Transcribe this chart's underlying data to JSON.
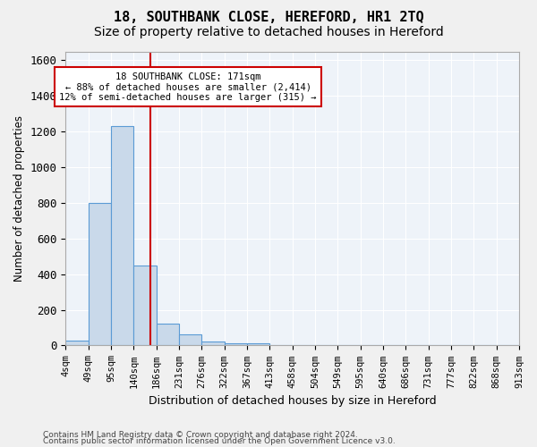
{
  "title": "18, SOUTHBANK CLOSE, HEREFORD, HR1 2TQ",
  "subtitle": "Size of property relative to detached houses in Hereford",
  "xlabel": "Distribution of detached houses by size in Hereford",
  "ylabel": "Number of detached properties",
  "bar_heights": [
    25,
    800,
    1230,
    450,
    125,
    60,
    20,
    12,
    10,
    0,
    0,
    0,
    0,
    0,
    0,
    0,
    0,
    0,
    0,
    0
  ],
  "bin_labels": [
    "4sqm",
    "49sqm",
    "95sqm",
    "140sqm",
    "186sqm",
    "231sqm",
    "276sqm",
    "322sqm",
    "367sqm",
    "413sqm",
    "458sqm",
    "504sqm",
    "549sqm",
    "595sqm",
    "640sqm",
    "686sqm",
    "731sqm",
    "777sqm",
    "822sqm",
    "868sqm",
    "913sqm"
  ],
  "bar_color": "#c9d9ea",
  "bar_edge_color": "#5b9bd5",
  "property_line_x": 3.72,
  "property_line_color": "#cc0000",
  "ylim": [
    0,
    1650
  ],
  "yticks": [
    0,
    200,
    400,
    600,
    800,
    1000,
    1200,
    1400,
    1600
  ],
  "annotation_text": "18 SOUTHBANK CLOSE: 171sqm\n← 88% of detached houses are smaller (2,414)\n12% of semi-detached houses are larger (315) →",
  "annotation_box_color": "#ffffff",
  "annotation_box_edge": "#cc0000",
  "footnote1": "Contains HM Land Registry data © Crown copyright and database right 2024.",
  "footnote2": "Contains public sector information licensed under the Open Government Licence v3.0.",
  "bg_color": "#eef3f9",
  "grid_color": "#ffffff",
  "title_fontsize": 11,
  "subtitle_fontsize": 10
}
